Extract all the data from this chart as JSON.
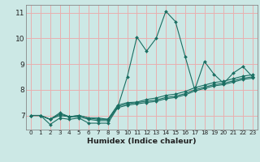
{
  "xlabel": "Humidex (Indice chaleur)",
  "xlim": [
    -0.5,
    23.5
  ],
  "ylim": [
    6.45,
    11.3
  ],
  "yticks": [
    7,
    8,
    9,
    10,
    11
  ],
  "xticks": [
    0,
    1,
    2,
    3,
    4,
    5,
    6,
    7,
    8,
    9,
    10,
    11,
    12,
    13,
    14,
    15,
    16,
    17,
    18,
    19,
    20,
    21,
    22,
    23
  ],
  "background_color": "#cce8e5",
  "grid_color_x": "#e8b0b0",
  "grid_color_y": "#e8b0b0",
  "line_color": "#1a6e62",
  "series": [
    [
      7.0,
      7.0,
      6.65,
      6.9,
      6.85,
      6.9,
      6.7,
      6.7,
      6.7,
      7.3,
      8.5,
      10.05,
      9.5,
      10.0,
      11.05,
      10.65,
      9.3,
      8.0,
      9.1,
      8.6,
      8.25,
      8.65,
      8.9,
      8.5
    ],
    [
      7.0,
      7.0,
      6.85,
      7.1,
      6.95,
      7.0,
      6.9,
      6.9,
      6.85,
      7.4,
      7.5,
      7.52,
      7.62,
      7.68,
      7.78,
      7.83,
      7.93,
      8.08,
      8.18,
      8.28,
      8.33,
      8.43,
      8.53,
      8.58
    ],
    [
      7.0,
      7.0,
      6.85,
      7.05,
      6.95,
      7.0,
      6.9,
      6.85,
      6.85,
      7.35,
      7.45,
      7.5,
      7.55,
      7.6,
      7.7,
      7.75,
      7.85,
      8.0,
      8.1,
      8.2,
      8.25,
      8.35,
      8.45,
      8.5
    ],
    [
      7.0,
      7.0,
      6.85,
      7.0,
      6.95,
      6.95,
      6.85,
      6.8,
      6.8,
      7.3,
      7.4,
      7.45,
      7.5,
      7.55,
      7.65,
      7.7,
      7.8,
      7.95,
      8.05,
      8.15,
      8.2,
      8.3,
      8.4,
      8.45
    ]
  ]
}
